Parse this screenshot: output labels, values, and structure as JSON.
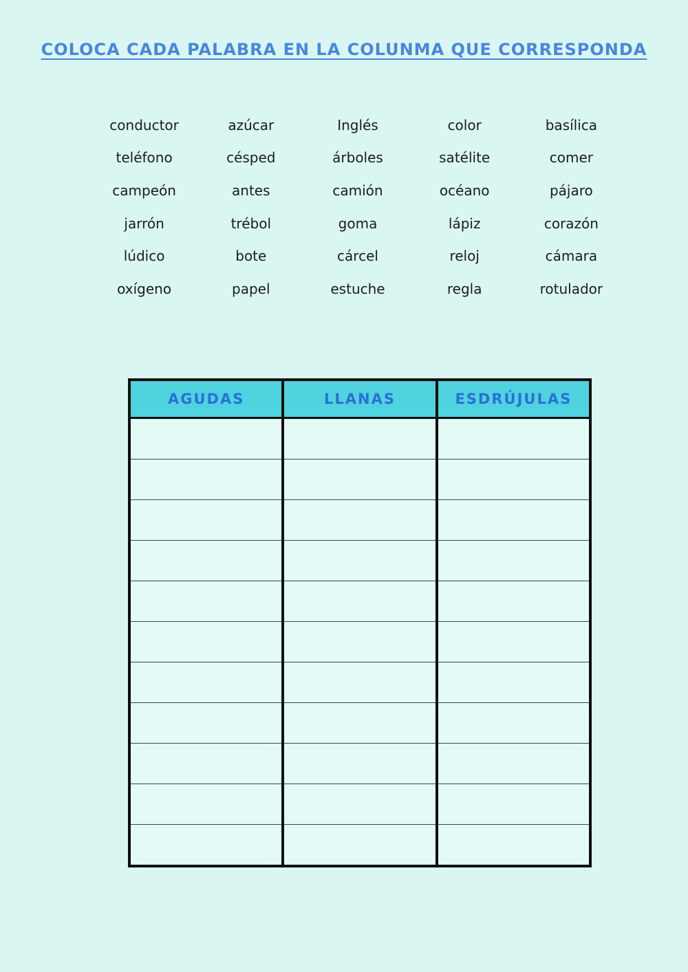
{
  "title": "COLOCA CADA PALABRA EN LA COLUNMA QUE CORRESPONDA",
  "word_bank": {
    "rows": [
      [
        "conductor",
        "azúcar",
        "Inglés",
        "color",
        "basílica"
      ],
      [
        "teléfono",
        "césped",
        "árboles",
        "satélite",
        "comer"
      ],
      [
        "campeón",
        "antes",
        "camión",
        "océano",
        "pájaro"
      ],
      [
        "jarrón",
        "trébol",
        "goma",
        "lápiz",
        "corazón"
      ],
      [
        "lúdico",
        "bote",
        "cárcel",
        "reloj",
        "cámara"
      ],
      [
        "oxígeno",
        "papel",
        "estuche",
        "regla",
        "rotulador"
      ]
    ]
  },
  "table": {
    "headers": [
      "AGUDAS",
      "LLANAS",
      "ESDRÚJULAS"
    ],
    "empty_row_count": 11
  },
  "colors": {
    "page_background": "#d9f6f2",
    "cell_background": "#e3faf6",
    "header_background": "#4ed3df",
    "header_text": "#2b6fd8",
    "title_text": "#4a86dc",
    "word_text": "#1c1c1c",
    "table_border": "#0d0d0d"
  }
}
